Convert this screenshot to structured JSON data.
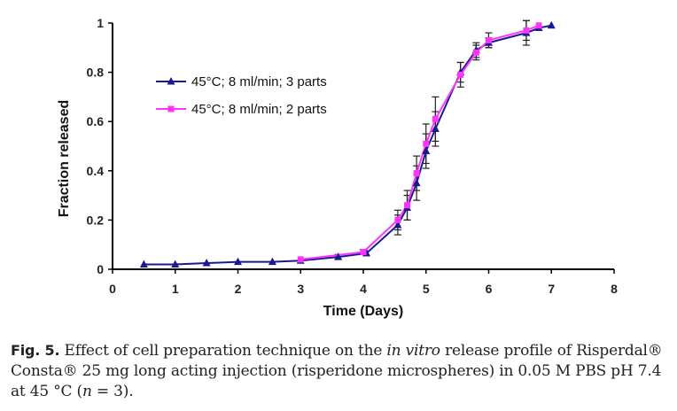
{
  "colors": {
    "series1": "#1a1a8c",
    "series2": "#ff33ff",
    "axis": "#000000",
    "error_bar": "#222222"
  },
  "chart_data": {
    "type": "line",
    "xlabel": "Time (Days)",
    "ylabel": "Fraction released",
    "xlim": [
      0,
      8
    ],
    "ylim": [
      0,
      1
    ],
    "x_ticks": [
      0,
      1,
      2,
      3,
      4,
      5,
      6,
      7,
      8
    ],
    "y_ticks": [
      0,
      0.2,
      0.4,
      0.6,
      0.8,
      1
    ],
    "x_tick_labels": [
      "0",
      "1",
      "2",
      "3",
      "4",
      "5",
      "6",
      "7",
      "8"
    ],
    "y_tick_labels": [
      "0",
      "0.2",
      "0.4",
      "0.6",
      "0.8",
      "1"
    ],
    "grid": false,
    "legend_position": "top-left",
    "series": [
      {
        "name": "45°C; 8 ml/min; 3 parts",
        "marker": "triangle",
        "x": [
          0.5,
          1.0,
          1.5,
          2.0,
          2.55,
          3.0,
          3.6,
          4.05,
          4.55,
          4.7,
          4.85,
          5.0,
          5.15,
          5.55,
          5.8,
          6.0,
          6.6,
          6.8,
          7.0
        ],
        "y": [
          0.02,
          0.02,
          0.025,
          0.03,
          0.03,
          0.035,
          0.05,
          0.065,
          0.18,
          0.25,
          0.35,
          0.48,
          0.57,
          0.8,
          0.89,
          0.92,
          0.96,
          0.98,
          0.99
        ],
        "errors": [
          0,
          0,
          0,
          0,
          0,
          0,
          0.01,
          0.01,
          0.04,
          0.05,
          0.07,
          0.07,
          0.07,
          0.04,
          0.03,
          0.02,
          0.05,
          0,
          0
        ]
      },
      {
        "name": "45°C; 8 ml/min; 2 parts",
        "marker": "square",
        "x": [
          3.0,
          4.0,
          4.55,
          4.7,
          4.85,
          5.0,
          5.15,
          5.55,
          5.8,
          6.0,
          6.6,
          6.8
        ],
        "y": [
          0.04,
          0.07,
          0.2,
          0.26,
          0.39,
          0.51,
          0.61,
          0.79,
          0.88,
          0.93,
          0.97,
          0.99
        ],
        "errors": [
          0,
          0.01,
          0.04,
          0.06,
          0.07,
          0.08,
          0.09,
          0.05,
          0.03,
          0.03,
          0.04,
          0
        ]
      }
    ]
  },
  "caption": {
    "label": "Fig. 5.",
    "text_before": " Effect of cell preparation technique on the ",
    "italic_1": "in vitro",
    "text_middle": " release profile of Risperdal® Consta® 25 mg long acting injection (risperidone microspheres) in 0.05 M PBS pH 7.4 at 45 °C (",
    "italic_2": "n",
    "text_after": " = 3)."
  }
}
